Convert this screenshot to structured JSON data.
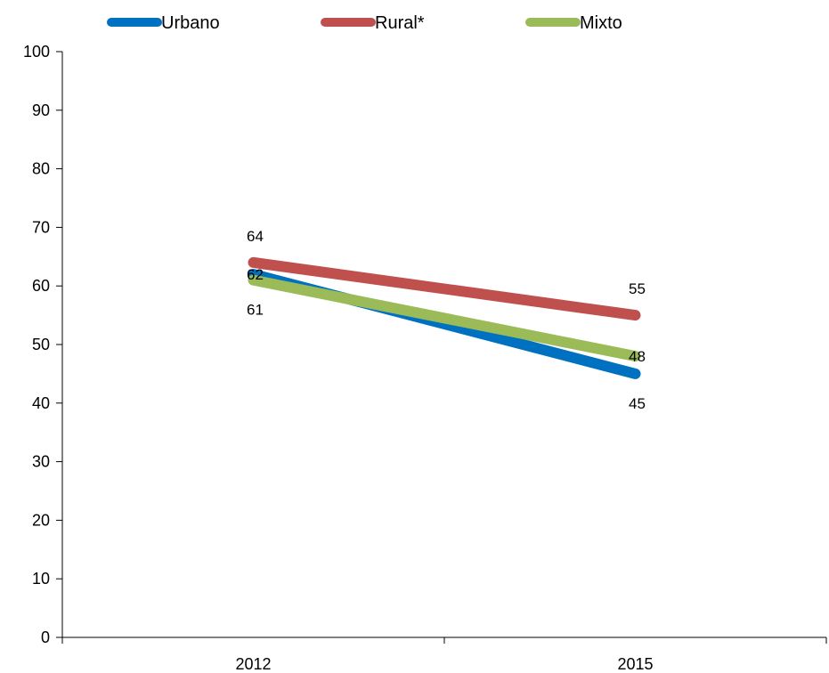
{
  "chart_data": {
    "type": "line",
    "categories": [
      "2012",
      "2015"
    ],
    "series": [
      {
        "name": "Urbano",
        "values": [
          62,
          45
        ],
        "color": "#0070C0"
      },
      {
        "name": "Rural*",
        "values": [
          64,
          55
        ],
        "color": "#C0504D"
      },
      {
        "name": "Mixto",
        "values": [
          61,
          48
        ],
        "color": "#9BBB59"
      }
    ],
    "ylim": [
      0,
      100
    ],
    "yticks": [
      0,
      10,
      20,
      30,
      40,
      50,
      60,
      70,
      80,
      90,
      100
    ],
    "legend_position": "top",
    "grid": false
  }
}
